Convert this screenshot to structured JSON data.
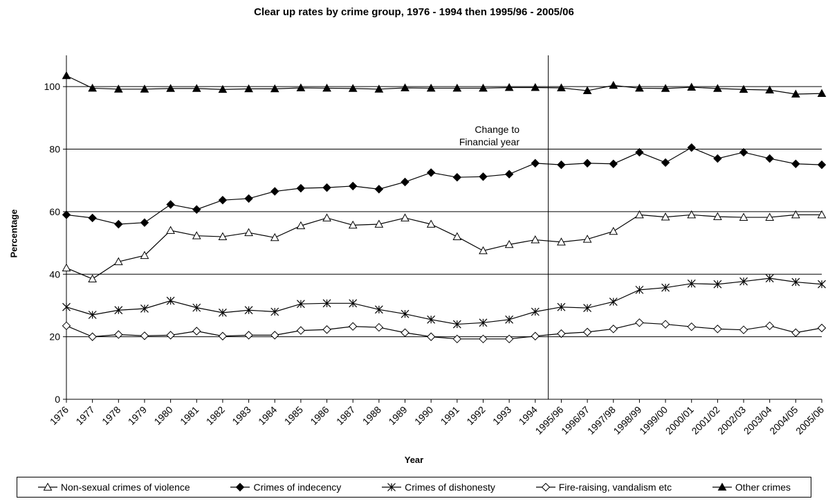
{
  "chart_data": {
    "type": "line",
    "title": "Clear up rates by crime group, 1976 - 1994 then 1995/96 - 2005/06",
    "xlabel": "Year",
    "ylabel": "Percentage",
    "ylim": [
      0,
      110
    ],
    "yticks": [
      0,
      20,
      40,
      60,
      80,
      100
    ],
    "grid": "horizontal",
    "legend": "bottom",
    "annotation": {
      "lines": [
        "Change to",
        "Financial year"
      ],
      "marker_between": [
        "1994",
        "1995/96"
      ]
    },
    "categories": [
      "1976",
      "1977",
      "1978",
      "1979",
      "1980",
      "1981",
      "1982",
      "1983",
      "1984",
      "1985",
      "1986",
      "1987",
      "1988",
      "1989",
      "1990",
      "1991",
      "1992",
      "1993",
      "1994",
      "1995/96",
      "1996/97",
      "1997/98",
      "1998/99",
      "1999/00",
      "2000/01",
      "2001/02",
      "2002/03",
      "2003/04",
      "2004/05",
      "2005/06"
    ],
    "series": [
      {
        "name": "Non-sexual crimes of violence",
        "marker": "triangle-open",
        "values": [
          42.0,
          38.5,
          44.0,
          46.0,
          54.0,
          52.3,
          52.0,
          53.3,
          51.7,
          55.5,
          58.0,
          55.7,
          56.0,
          58.0,
          56.0,
          52.0,
          47.5,
          49.5,
          51.0,
          50.3,
          51.2,
          53.7,
          59.0,
          58.3,
          59.0,
          58.4,
          58.2,
          58.2,
          59.0,
          59.0
        ]
      },
      {
        "name": "Crimes of indecency",
        "marker": "diamond-filled",
        "values": [
          59.0,
          58.0,
          56.0,
          56.5,
          62.3,
          60.7,
          63.7,
          64.2,
          66.5,
          67.5,
          67.7,
          68.2,
          67.2,
          69.5,
          72.5,
          71.0,
          71.2,
          72.0,
          75.5,
          75.0,
          75.5,
          75.3,
          79.0,
          75.7,
          80.5,
          77.0,
          79.0,
          77.0,
          75.3,
          75.0
        ]
      },
      {
        "name": "Crimes of dishonesty",
        "marker": "star",
        "values": [
          29.5,
          27.0,
          28.5,
          29.0,
          31.5,
          29.3,
          27.7,
          28.5,
          28.0,
          30.5,
          30.7,
          30.7,
          28.7,
          27.3,
          25.5,
          24.0,
          24.5,
          25.5,
          28.0,
          29.5,
          29.2,
          31.2,
          35.0,
          35.7,
          37.0,
          36.8,
          37.7,
          38.7,
          37.5,
          36.8
        ]
      },
      {
        "name": "Fire-raising, vandalism etc",
        "marker": "diamond-open",
        "values": [
          23.5,
          20.0,
          20.7,
          20.3,
          20.5,
          21.8,
          20.2,
          20.5,
          20.5,
          22.0,
          22.3,
          23.3,
          23.0,
          21.3,
          20.0,
          19.3,
          19.3,
          19.3,
          20.2,
          21.0,
          21.5,
          22.5,
          24.5,
          24.0,
          23.2,
          22.5,
          22.2,
          23.5,
          21.3,
          22.8
        ]
      },
      {
        "name": "Other crimes",
        "marker": "triangle-filled",
        "values": [
          103.5,
          99.5,
          99.2,
          99.2,
          99.4,
          99.4,
          99.1,
          99.3,
          99.3,
          99.6,
          99.5,
          99.4,
          99.2,
          99.6,
          99.5,
          99.5,
          99.5,
          99.7,
          99.7,
          99.6,
          98.7,
          100.4,
          99.5,
          99.4,
          99.8,
          99.4,
          99.1,
          98.9,
          97.6,
          97.8
        ]
      }
    ]
  }
}
